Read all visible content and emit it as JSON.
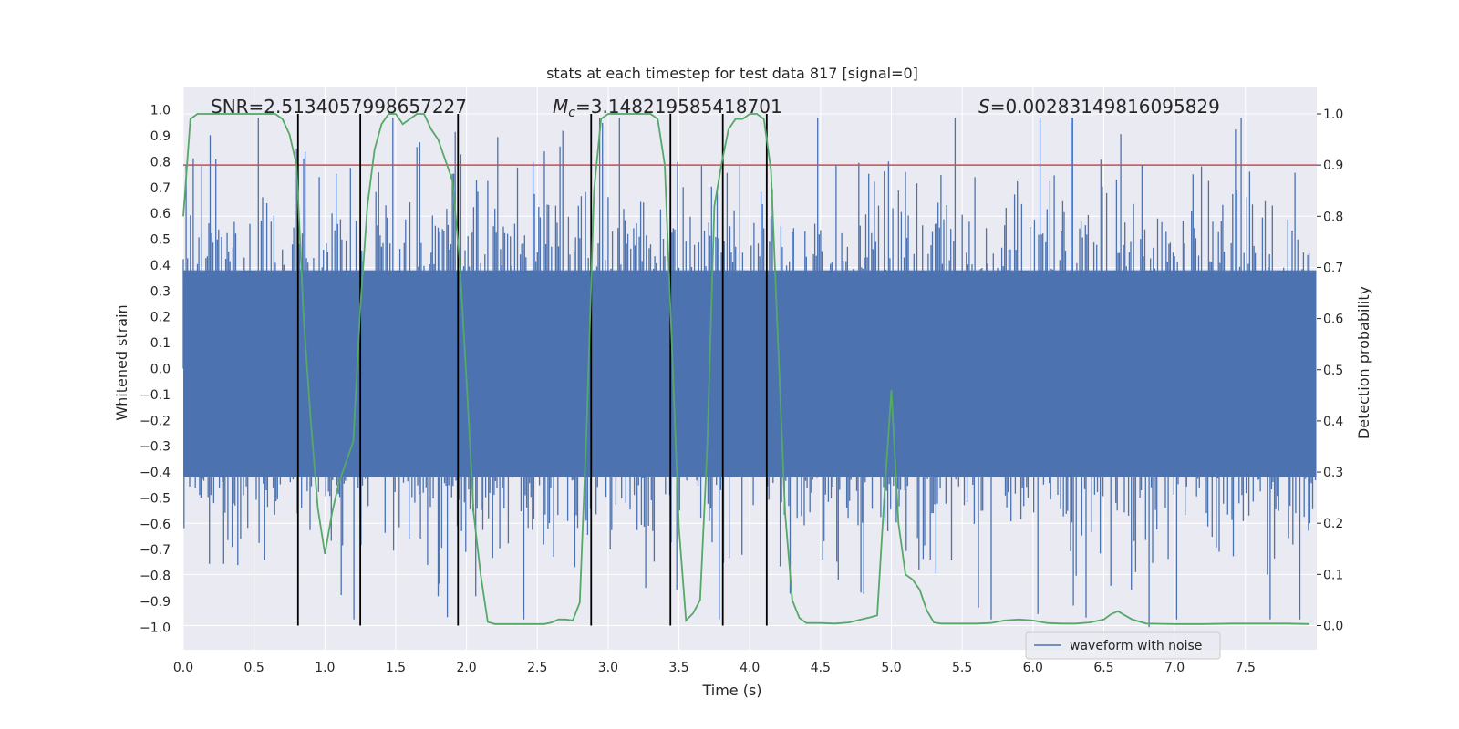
{
  "chart_data": {
    "type": "line",
    "title": "stats at each timestep for test data 817 [signal=0]",
    "xlabel": "Time (s)",
    "ylabel": "Whitened strain",
    "ylabel_right": "Detection probability",
    "xlim": [
      0,
      8
    ],
    "ylim": [
      -1.1,
      1.1
    ],
    "ylim_right": [
      -0.05,
      1.03
    ],
    "grid": true,
    "x_ticks": [
      "0.0",
      "0.5",
      "1.0",
      "1.5",
      "2.0",
      "2.5",
      "3.0",
      "3.5",
      "4.0",
      "4.5",
      "5.0",
      "5.5",
      "6.0",
      "6.5",
      "7.0",
      "7.5"
    ],
    "y_ticks": [
      "1.0",
      "0.9",
      "0.8",
      "0.7",
      "0.6",
      "0.5",
      "0.4",
      "0.3",
      "0.2",
      "0.1",
      "0.0",
      "-0.1",
      "-0.2",
      "-0.3",
      "-0.4",
      "-0.5",
      "-0.6",
      "-0.7",
      "-0.8",
      "-0.9",
      "-1.0"
    ],
    "y_ticks_right": [
      "1.0",
      "0.9",
      "0.8",
      "0.7",
      "0.6",
      "0.5",
      "0.4",
      "0.3",
      "0.2",
      "0.1",
      "0.0"
    ],
    "annotations": {
      "snr": "SNR=2.5134057998657227",
      "mc_symbol": "M",
      "mc_sub": "c",
      "mc_value": "=3.148219585418701",
      "s_symbol": "S",
      "s_value": "=0.00283149816095829"
    },
    "legend": {
      "label": "waveform with noise",
      "location": "lower-right"
    },
    "threshold_right": 0.9,
    "vertical_lines_x": [
      0.81,
      1.25,
      1.94,
      2.88,
      3.44,
      3.81,
      4.12
    ],
    "detection_probability": {
      "x": [
        0.0,
        0.05,
        0.1,
        0.2,
        0.3,
        0.4,
        0.5,
        0.6,
        0.65,
        0.7,
        0.75,
        0.8,
        0.85,
        0.9,
        0.95,
        1.0,
        1.05,
        1.1,
        1.2,
        1.25,
        1.3,
        1.35,
        1.4,
        1.45,
        1.5,
        1.55,
        1.6,
        1.65,
        1.7,
        1.75,
        1.8,
        1.85,
        1.9,
        1.95,
        2.0,
        2.05,
        2.1,
        2.15,
        2.2,
        2.3,
        2.4,
        2.5,
        2.55,
        2.6,
        2.65,
        2.7,
        2.75,
        2.8,
        2.85,
        2.9,
        2.95,
        3.0,
        3.05,
        3.1,
        3.2,
        3.3,
        3.35,
        3.4,
        3.45,
        3.5,
        3.55,
        3.6,
        3.65,
        3.7,
        3.75,
        3.8,
        3.85,
        3.9,
        3.95,
        4.0,
        4.05,
        4.1,
        4.15,
        4.2,
        4.25,
        4.3,
        4.35,
        4.4,
        4.5,
        4.6,
        4.7,
        4.8,
        4.85,
        4.9,
        4.95,
        5.0,
        5.05,
        5.1,
        5.15,
        5.2,
        5.25,
        5.3,
        5.35,
        5.4,
        5.5,
        5.6,
        5.7,
        5.8,
        5.9,
        6.0,
        6.1,
        6.2,
        6.3,
        6.4,
        6.5,
        6.55,
        6.6,
        6.65,
        6.7,
        6.8,
        7.0,
        7.2,
        7.4,
        7.6,
        7.8,
        7.95
      ],
      "y": [
        0.8,
        0.99,
        1.0,
        1.0,
        1.0,
        1.0,
        1.0,
        1.0,
        1.0,
        0.99,
        0.96,
        0.9,
        0.6,
        0.4,
        0.23,
        0.14,
        0.22,
        0.28,
        0.36,
        0.62,
        0.82,
        0.93,
        0.98,
        1.0,
        1.0,
        0.98,
        0.99,
        1.0,
        1.0,
        0.97,
        0.95,
        0.91,
        0.87,
        0.72,
        0.48,
        0.22,
        0.1,
        0.007,
        0.003,
        0.003,
        0.003,
        0.003,
        0.003,
        0.006,
        0.012,
        0.012,
        0.01,
        0.045,
        0.4,
        0.85,
        0.99,
        1.0,
        1.0,
        1.0,
        1.0,
        1.0,
        0.99,
        0.9,
        0.55,
        0.19,
        0.01,
        0.024,
        0.05,
        0.35,
        0.82,
        0.9,
        0.97,
        0.99,
        0.99,
        1.0,
        1.0,
        0.99,
        0.89,
        0.55,
        0.22,
        0.05,
        0.015,
        0.005,
        0.005,
        0.004,
        0.006,
        0.013,
        0.016,
        0.02,
        0.25,
        0.46,
        0.2,
        0.1,
        0.09,
        0.07,
        0.03,
        0.006,
        0.004,
        0.004,
        0.004,
        0.004,
        0.005,
        0.01,
        0.012,
        0.01,
        0.005,
        0.004,
        0.004,
        0.006,
        0.012,
        0.022,
        0.028,
        0.02,
        0.012,
        0.004,
        0.003,
        0.003,
        0.004,
        0.004,
        0.004,
        0.003
      ]
    },
    "waveform": {
      "sample_count": 1600,
      "t_start": 0.0,
      "t_end": 8.0,
      "core_low": -0.42,
      "core_high": 0.38,
      "typical_amplitude": 0.3,
      "peak_max": 0.97,
      "peak_min": -1.0
    }
  },
  "colors": {
    "background": "#eaeaf2",
    "grid": "#ffffff",
    "waveform": "#4c72b0",
    "probability": "#55a868",
    "threshold": "#c44e52",
    "vline": "#000000"
  }
}
